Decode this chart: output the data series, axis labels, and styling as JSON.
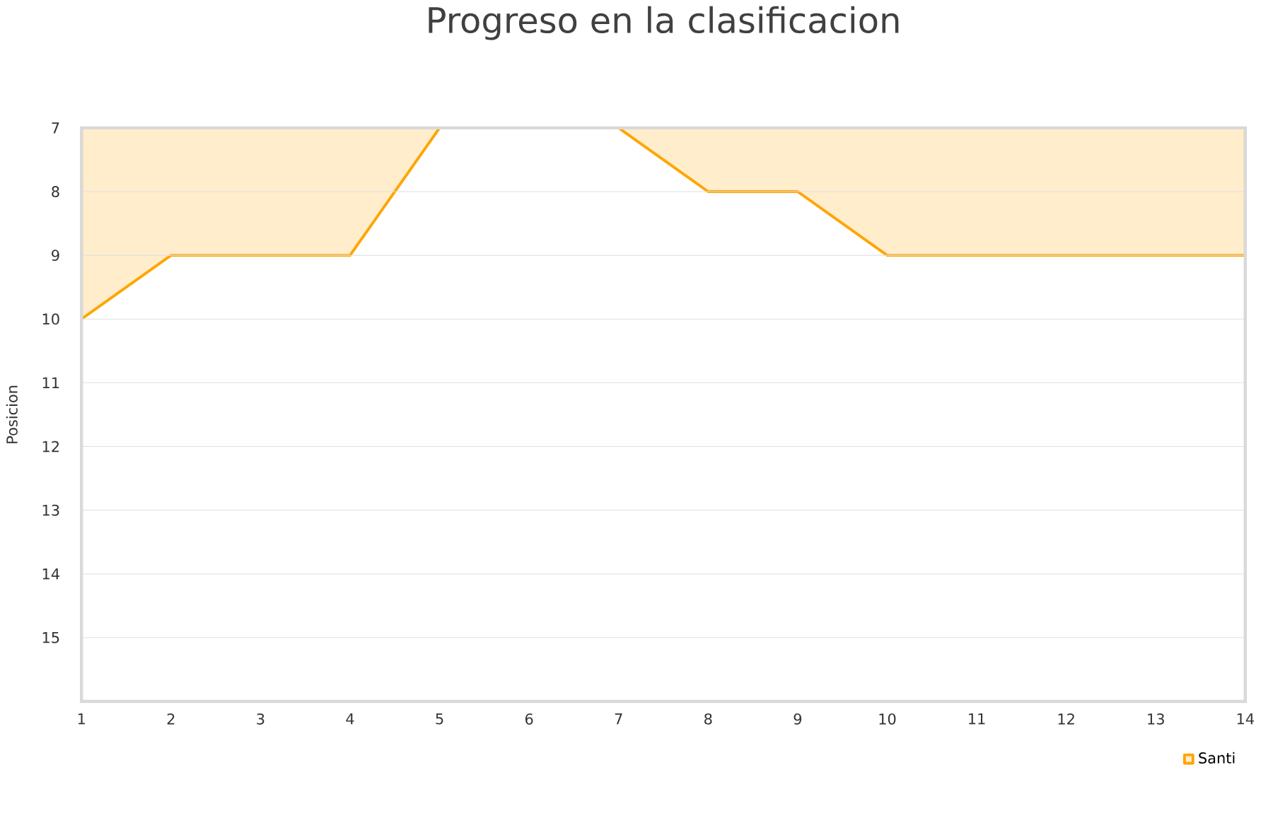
{
  "chart_data": {
    "type": "area",
    "title": "Progreso en la clasificacion",
    "ylabel": "Posicion",
    "x": [
      1,
      2,
      3,
      4,
      5,
      6,
      7,
      8,
      9,
      10,
      11,
      12,
      13,
      14
    ],
    "series": [
      {
        "name": "Santi",
        "color": "#ffa500",
        "values": [
          10,
          9,
          9,
          9,
          7,
          7,
          7,
          8,
          8,
          9,
          9,
          9,
          9,
          9
        ]
      }
    ],
    "xlim": [
      1,
      14
    ],
    "xticks": [
      1,
      2,
      3,
      4,
      5,
      6,
      7,
      8,
      9,
      10,
      11,
      12,
      13,
      14
    ],
    "ylim": [
      16,
      7
    ],
    "yticks": [
      7,
      8,
      9,
      10,
      11,
      12,
      13,
      14,
      15
    ],
    "grid": "y",
    "legend": "bottom right"
  }
}
